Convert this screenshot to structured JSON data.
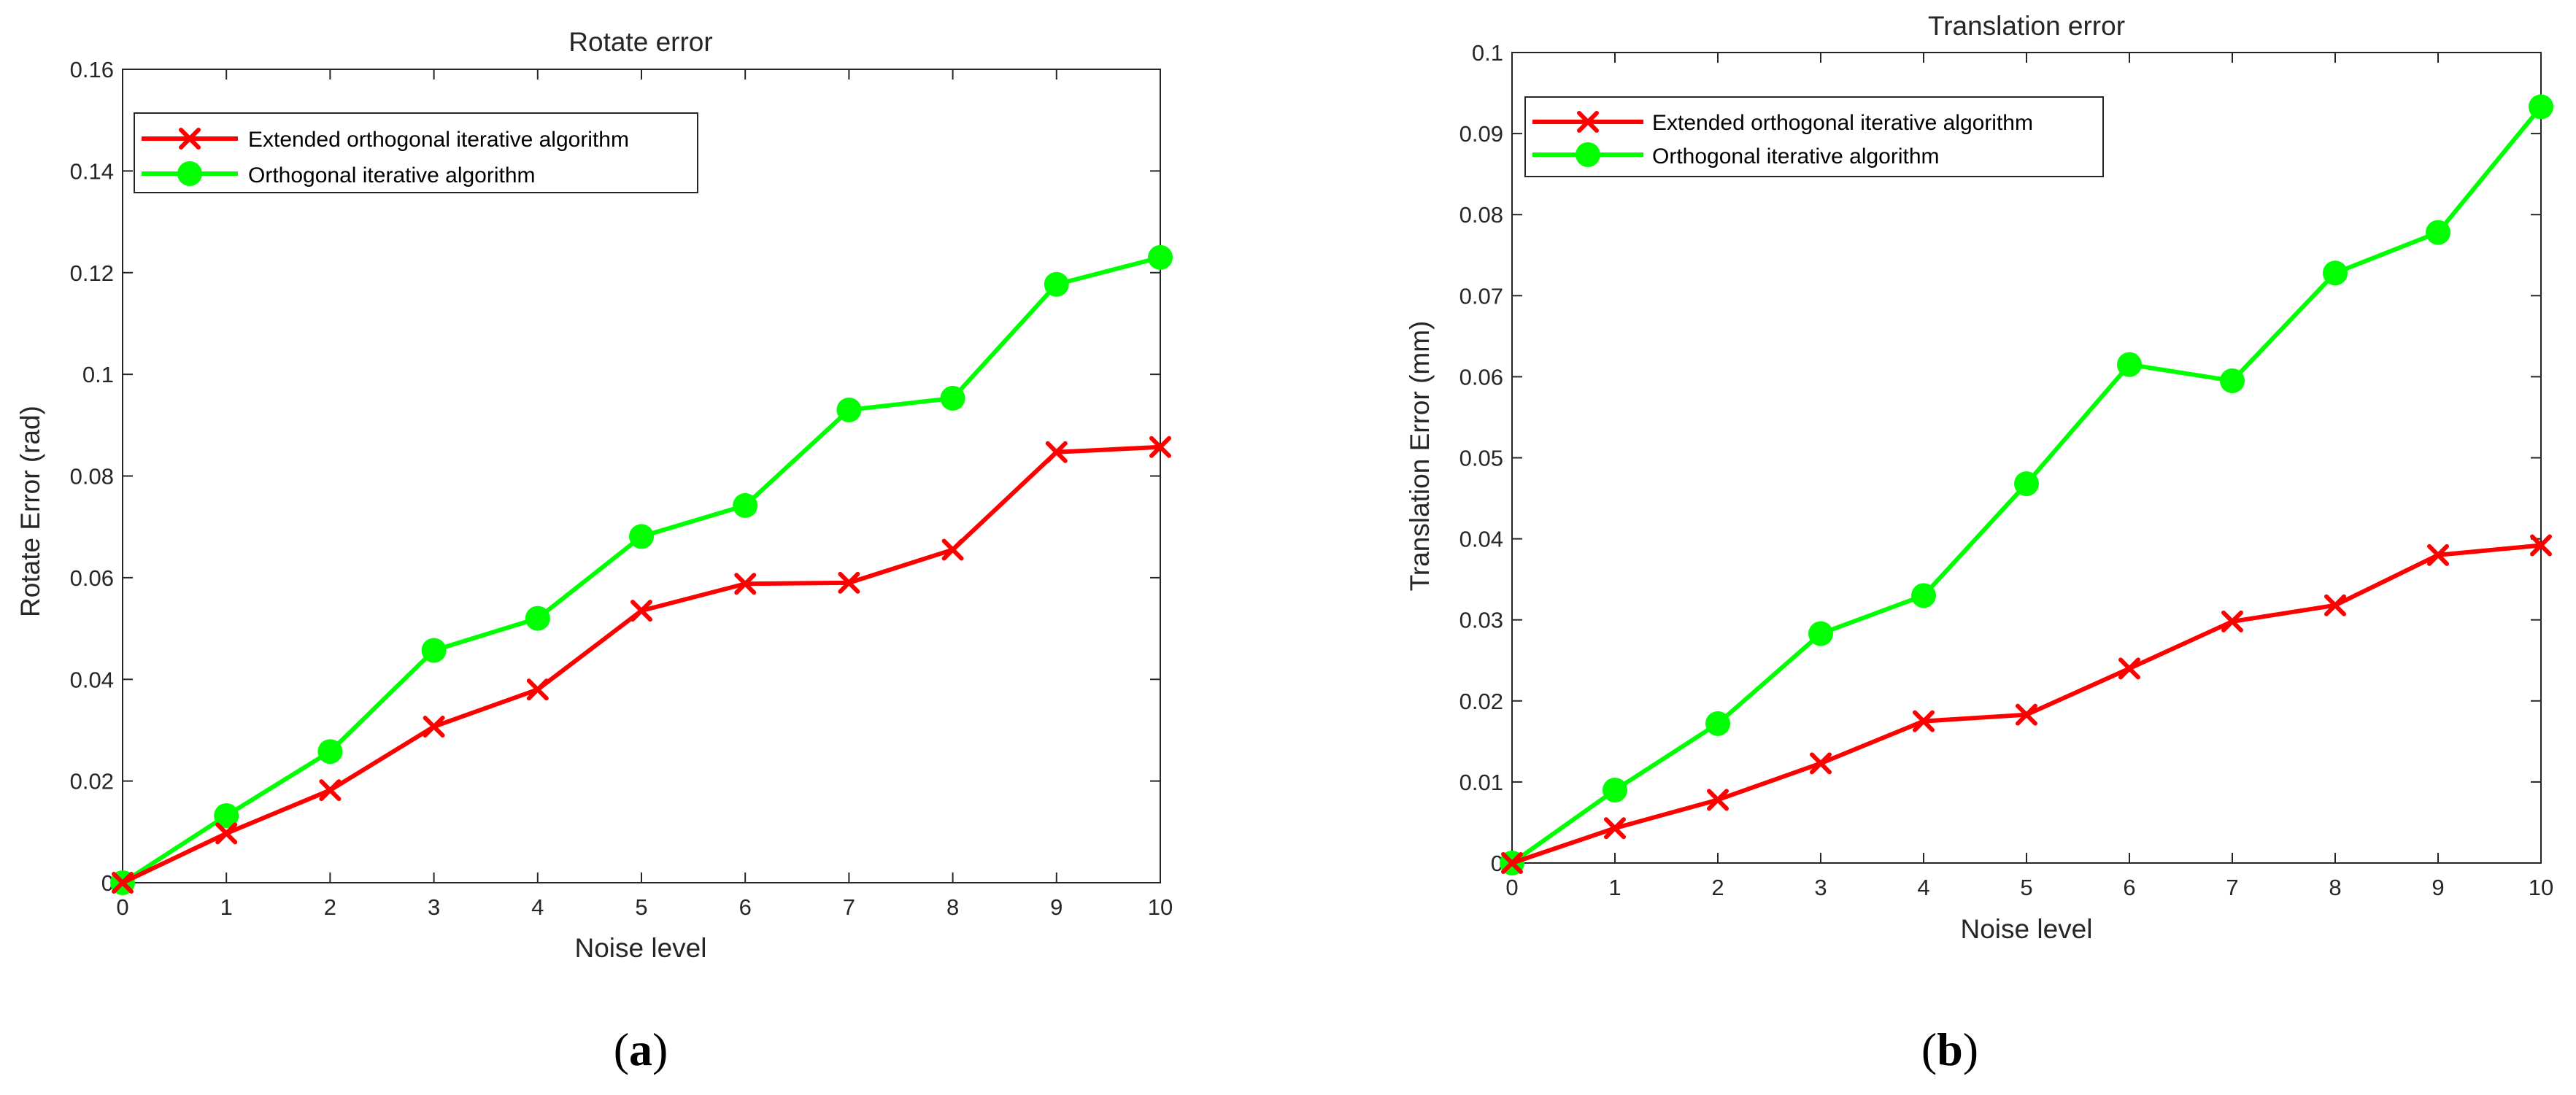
{
  "chart_data": [
    {
      "type": "line",
      "title": "Rotate error",
      "xlabel": "Noise level",
      "ylabel": "Rotate Error (rad)",
      "xlim": [
        0,
        10
      ],
      "ylim": [
        0,
        0.16
      ],
      "x_ticks": [
        "0",
        "1",
        "2",
        "3",
        "4",
        "5",
        "6",
        "7",
        "8",
        "9",
        "10"
      ],
      "y_ticks": [
        "0",
        "0.02",
        "0.04",
        "0.06",
        "0.08",
        "0.1",
        "0.12",
        "0.14",
        "0.16"
      ],
      "grid": false,
      "legend_position": "top-left",
      "caption": {
        "open": "(",
        "letter": "a",
        "close": ")"
      },
      "x": [
        0,
        1,
        2,
        3,
        4,
        5,
        6,
        7,
        8,
        9,
        10
      ],
      "series": [
        {
          "name": "Extended orthogonal iterative algorithm",
          "color": "#ff0000",
          "marker": "x",
          "values": [
            0,
            0.0097,
            0.0182,
            0.0307,
            0.038,
            0.0535,
            0.0588,
            0.059,
            0.0655,
            0.0847,
            0.0857
          ]
        },
        {
          "name": "Orthogonal iterative algorithm",
          "color": "#00ff00",
          "marker": "circle",
          "values": [
            0,
            0.0132,
            0.0258,
            0.0457,
            0.052,
            0.0681,
            0.0742,
            0.093,
            0.0953,
            0.1177,
            0.123
          ]
        }
      ]
    },
    {
      "type": "line",
      "title": "Translation error",
      "xlabel": "Noise level",
      "ylabel": "Translation Error (mm)",
      "xlim": [
        0,
        10
      ],
      "ylim": [
        0,
        0.1
      ],
      "x_ticks": [
        "0",
        "1",
        "2",
        "3",
        "4",
        "5",
        "6",
        "7",
        "8",
        "9",
        "10"
      ],
      "y_ticks": [
        "0",
        "0.01",
        "0.02",
        "0.03",
        "0.04",
        "0.05",
        "0.06",
        "0.07",
        "0.08",
        "0.09",
        "0.1"
      ],
      "grid": false,
      "legend_position": "top-left",
      "caption": {
        "open": "(",
        "letter": "b",
        "close": ")"
      },
      "x": [
        0,
        1,
        2,
        3,
        4,
        5,
        6,
        7,
        8,
        9,
        10
      ],
      "series": [
        {
          "name": "Extended orthogonal iterative algorithm",
          "color": "#ff0000",
          "marker": "x",
          "values": [
            0,
            0.0043,
            0.0078,
            0.0123,
            0.0175,
            0.0183,
            0.024,
            0.0298,
            0.0318,
            0.038,
            0.0392
          ]
        },
        {
          "name": "Orthogonal iterative algorithm",
          "color": "#00ff00",
          "marker": "circle",
          "values": [
            0,
            0.009,
            0.0172,
            0.0283,
            0.033,
            0.0468,
            0.0615,
            0.0595,
            0.0728,
            0.0778,
            0.0933
          ]
        }
      ]
    }
  ]
}
